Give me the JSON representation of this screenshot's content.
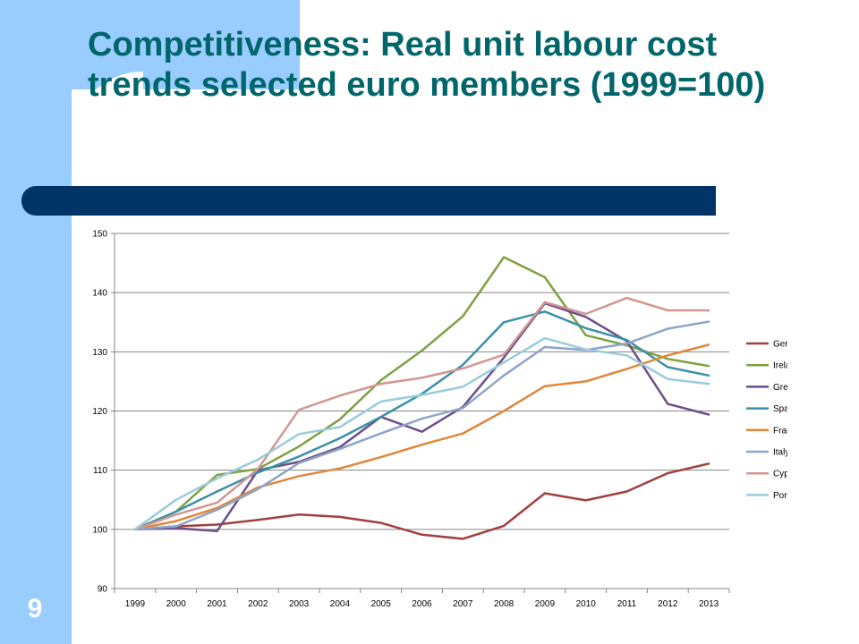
{
  "slide": {
    "title": "Competitiveness: Real unit labour cost trends selected euro members (1999=100)",
    "number": "9"
  },
  "colors": {
    "background": "#ffffff",
    "accent_band": "#99ccff",
    "title_text": "#00666b",
    "title_bar": "#003366"
  },
  "chart_data": {
    "type": "line",
    "title": "",
    "xlabel": "",
    "ylabel": "",
    "ylim": [
      90,
      150
    ],
    "yticks": [
      "90",
      "100",
      "110",
      "120",
      "130",
      "140",
      "150"
    ],
    "categories": [
      "1999",
      "2000",
      "2001",
      "2002",
      "2003",
      "2004",
      "2005",
      "2006",
      "2007",
      "2008",
      "2009",
      "2010",
      "2011",
      "2012",
      "2013"
    ],
    "grid": true,
    "legend_position": "right",
    "series": [
      {
        "name": "Germany",
        "color": "#a0413f",
        "values": [
          100,
          100.5,
          100.8,
          101.6,
          102.5,
          102.1,
          101.1,
          99.1,
          98.4,
          100.6,
          106.1,
          104.9,
          106.4,
          109.5,
          111.1
        ]
      },
      {
        "name": "Ireland",
        "color": "#7fa043",
        "values": [
          100,
          103.0,
          109.2,
          110.2,
          114.0,
          118.6,
          125.2,
          130.2,
          136.0,
          146.0,
          142.6,
          132.8,
          131.1,
          128.8,
          127.6
        ]
      },
      {
        "name": "Greece",
        "color": "#6a4f8a",
        "values": [
          100,
          100.2,
          99.7,
          110.0,
          111.4,
          113.9,
          119.0,
          116.5,
          120.7,
          129.0,
          138.2,
          135.9,
          131.8,
          121.2,
          119.4
        ]
      },
      {
        "name": "Spain",
        "color": "#3b91a6",
        "values": [
          100,
          103.0,
          106.4,
          109.6,
          112.3,
          115.4,
          119.0,
          122.9,
          127.8,
          135.0,
          136.8,
          134.0,
          132.0,
          127.4,
          126.0
        ]
      },
      {
        "name": "France",
        "color": "#e0873b",
        "values": [
          100,
          101.4,
          103.6,
          107.1,
          109.0,
          110.3,
          112.2,
          114.3,
          116.2,
          120.0,
          124.2,
          125.0,
          127.1,
          129.4,
          131.2
        ]
      },
      {
        "name": "Italy",
        "color": "#8ea3c8",
        "values": [
          100,
          100.5,
          103.3,
          106.8,
          111.2,
          113.6,
          116.2,
          118.7,
          120.5,
          126.0,
          130.8,
          130.3,
          131.4,
          133.9,
          135.1
        ]
      },
      {
        "name": "Cyprus",
        "color": "#d29694",
        "values": [
          100,
          102.5,
          104.5,
          110.2,
          120.2,
          122.6,
          124.6,
          125.6,
          127.2,
          129.5,
          138.4,
          136.4,
          139.1,
          137.0,
          137.0
        ]
      },
      {
        "name": "Portugal",
        "color": "#9acbd9",
        "values": [
          100,
          105.0,
          108.6,
          111.8,
          116.1,
          117.3,
          121.6,
          122.7,
          124.1,
          128.2,
          132.3,
          130.4,
          129.4,
          125.4,
          124.6
        ]
      }
    ]
  }
}
